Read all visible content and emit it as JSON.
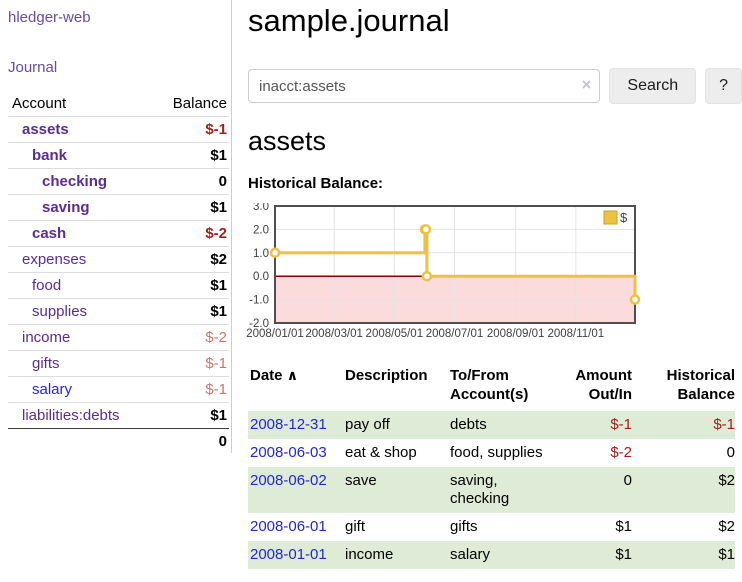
{
  "app": {
    "title": "hledger-web"
  },
  "colors": {
    "link_purple": "#5b2d90",
    "nav_purple": "#6b4aa4",
    "link_blue": "#2525d4",
    "negative_strong": "#a1211b",
    "negative_soft": "#c4776f",
    "row_stripe_green": "#deebd7"
  },
  "sidebar": {
    "journal_link": "Journal",
    "accounts_table": {
      "headers": {
        "account": "Account",
        "balance": "Balance"
      },
      "rows": [
        {
          "name": "assets",
          "level": 1,
          "bold": true,
          "balance": "$-1",
          "balance_style": "neg-strong"
        },
        {
          "name": "bank",
          "level": 2,
          "bold": true,
          "balance": "$1",
          "balance_style": "pos"
        },
        {
          "name": "checking",
          "level": 3,
          "bold": true,
          "balance": "0",
          "balance_style": "pos"
        },
        {
          "name": "saving",
          "level": 3,
          "bold": true,
          "balance": "$1",
          "balance_style": "pos"
        },
        {
          "name": "cash",
          "level": 2,
          "bold": true,
          "balance": "$-2",
          "balance_style": "neg-strong"
        },
        {
          "name": "expenses",
          "level": 1,
          "bold": false,
          "balance": "$2",
          "balance_style": "pos"
        },
        {
          "name": "food",
          "level": 2,
          "bold": false,
          "balance": "$1",
          "balance_style": "pos"
        },
        {
          "name": "supplies",
          "level": 2,
          "bold": false,
          "balance": "$1",
          "balance_style": "pos"
        },
        {
          "name": "income",
          "level": 1,
          "bold": false,
          "balance": "$-2",
          "balance_style": "neg-soft"
        },
        {
          "name": "gifts",
          "level": 2,
          "bold": false,
          "balance": "$-1",
          "balance_style": "neg-soft"
        },
        {
          "name": "salary",
          "level": 2,
          "bold": false,
          "link_style": "blue",
          "balance": "$-1",
          "balance_style": "neg-soft"
        },
        {
          "name": "liabilities:debts",
          "level": 1,
          "bold": false,
          "balance": "$1",
          "balance_style": "pos"
        }
      ],
      "total": "0"
    }
  },
  "header": {
    "title": "sample.journal"
  },
  "search": {
    "value": "inacct:assets",
    "clear_icon": "×",
    "button_label": "Search",
    "help_label": "?"
  },
  "register": {
    "heading": "assets",
    "chart_label": "Historical Balance:",
    "table": {
      "headers": {
        "date": "Date",
        "description": "Description",
        "accounts": "To/From\nAccount(s)",
        "amount": "Amount\nOut/In",
        "balance": "Historical\nBalance"
      },
      "sort_indicator": "∧",
      "rows": [
        {
          "date": "2008-12-31",
          "description": "pay off",
          "accounts": "debts",
          "amount": "$-1",
          "amount_negative": true,
          "balance": "$-1",
          "balance_negative": true,
          "striped": true
        },
        {
          "date": "2008-06-03",
          "description": "eat & shop",
          "accounts": "food, supplies",
          "amount": "$-2",
          "amount_negative": true,
          "balance": "0",
          "balance_negative": false,
          "striped": false
        },
        {
          "date": "2008-06-02",
          "description": "save",
          "accounts": "saving,\nchecking",
          "amount": "0",
          "amount_negative": false,
          "balance": "$2",
          "balance_negative": false,
          "striped": true
        },
        {
          "date": "2008-06-01",
          "description": "gift",
          "accounts": "gifts",
          "amount": "$1",
          "amount_negative": false,
          "balance": "$2",
          "balance_negative": false,
          "striped": false
        },
        {
          "date": "2008-01-01",
          "description": "income",
          "accounts": "salary",
          "amount": "$1",
          "amount_negative": false,
          "balance": "$1",
          "balance_negative": false,
          "striped": true
        }
      ]
    }
  },
  "chart_data": {
    "type": "line",
    "step": true,
    "title": "Historical Balance",
    "series": [
      {
        "name": "$",
        "color": "#edc240",
        "points": [
          [
            "2008-01-01",
            1
          ],
          [
            "2008-06-01",
            2
          ],
          [
            "2008-06-02",
            2
          ],
          [
            "2008-06-03",
            0
          ],
          [
            "2008-12-31",
            -1
          ]
        ]
      }
    ],
    "xlim": [
      "2008-01-01",
      "2008-12-31"
    ],
    "ylim": [
      -2,
      3
    ],
    "yticks": [
      3.0,
      2.0,
      1.0,
      0.0,
      -1.0,
      -2.0
    ],
    "xticks": [
      "2008/01/01",
      "2008/03/01",
      "2008/05/01",
      "2008/07/01",
      "2008/09/01",
      "2008/11/01"
    ],
    "legend": {
      "label": "$",
      "position": "top-right"
    },
    "grid": true,
    "colors": {
      "negative_region": "#fbdbdb",
      "zero_line": "#8b0000",
      "grid": "#e3e3e3",
      "border": "#4f4f4f",
      "legend_border": "#c9a227"
    }
  }
}
